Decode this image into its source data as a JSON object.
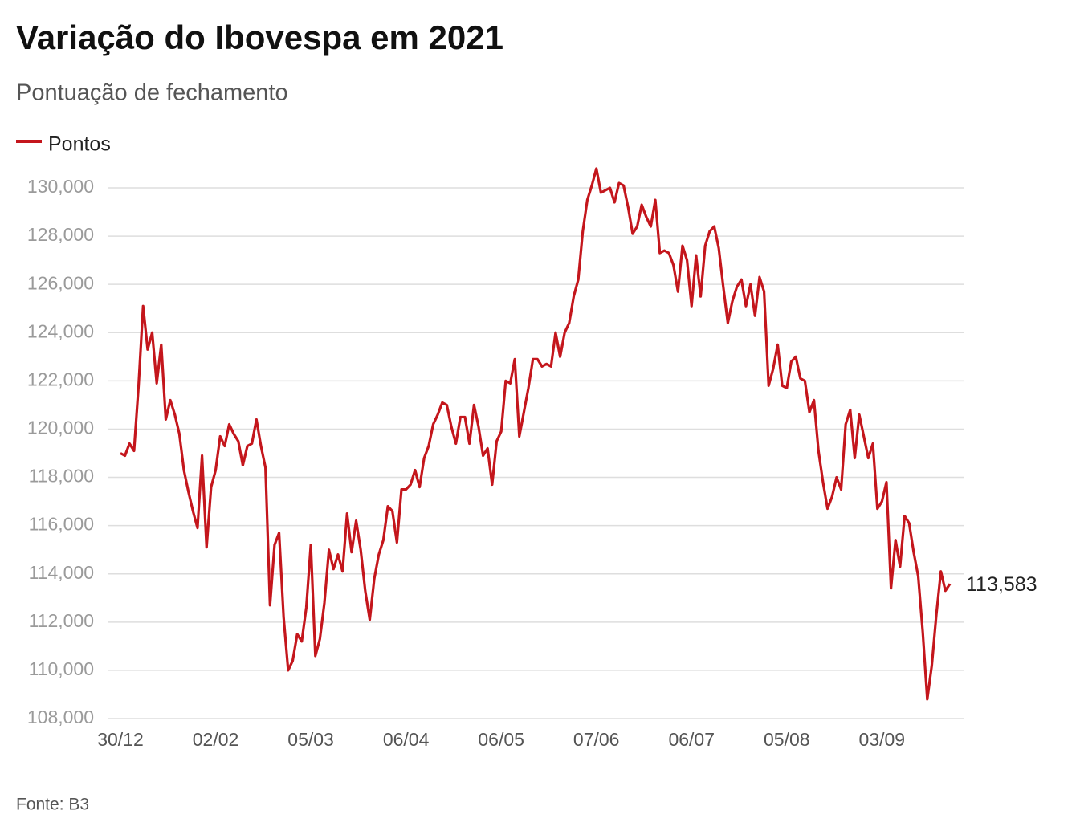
{
  "chart_data": {
    "type": "line",
    "title": "Variação do Ibovespa em 2021",
    "subtitle": "Pontuação de fechamento",
    "source": "Fonte: B3",
    "grid": true,
    "ylim": [
      108000,
      130000
    ],
    "yticks": [
      {
        "value": 108000,
        "label": "108,000"
      },
      {
        "value": 110000,
        "label": "110,000"
      },
      {
        "value": 112000,
        "label": "112,000"
      },
      {
        "value": 114000,
        "label": "114,000"
      },
      {
        "value": 116000,
        "label": "116,000"
      },
      {
        "value": 118000,
        "label": "118,000"
      },
      {
        "value": 120000,
        "label": "120,000"
      },
      {
        "value": 122000,
        "label": "122,000"
      },
      {
        "value": 124000,
        "label": "124,000"
      },
      {
        "value": 126000,
        "label": "126,000"
      },
      {
        "value": 128000,
        "label": "128,000"
      },
      {
        "value": 130000,
        "label": "130,000"
      }
    ],
    "categories": [
      "30/12",
      null,
      null,
      null,
      null,
      null,
      null,
      null,
      null,
      null,
      null,
      null,
      null,
      null,
      null,
      null,
      null,
      null,
      null,
      null,
      null,
      "02/02",
      null,
      null,
      null,
      null,
      null,
      null,
      null,
      null,
      null,
      null,
      null,
      null,
      null,
      null,
      null,
      null,
      null,
      null,
      null,
      null,
      "05/03",
      null,
      null,
      null,
      null,
      null,
      null,
      null,
      null,
      null,
      null,
      null,
      null,
      null,
      null,
      null,
      null,
      null,
      null,
      null,
      null,
      "06/04",
      null,
      null,
      null,
      null,
      null,
      null,
      null,
      null,
      null,
      null,
      null,
      null,
      null,
      null,
      null,
      null,
      null,
      null,
      null,
      null,
      "06/05",
      null,
      null,
      null,
      null,
      null,
      null,
      null,
      null,
      null,
      null,
      null,
      null,
      null,
      null,
      null,
      null,
      null,
      null,
      null,
      null,
      "07/06",
      null,
      null,
      null,
      null,
      null,
      null,
      null,
      null,
      null,
      null,
      null,
      null,
      null,
      null,
      null,
      null,
      null,
      null,
      null,
      null,
      "06/07",
      null,
      null,
      null,
      null,
      null,
      null,
      null,
      null,
      null,
      null,
      null,
      null,
      null,
      null,
      null,
      null,
      null,
      null,
      null,
      null,
      "05/08",
      null,
      null,
      null,
      null,
      null,
      null,
      null,
      null,
      null,
      null,
      null,
      null,
      null,
      null,
      null,
      null,
      null,
      null,
      null,
      null,
      "03/09",
      null,
      null,
      null,
      null,
      null,
      null,
      null,
      null,
      null,
      null,
      null,
      null,
      null,
      null,
      null
    ],
    "series": [
      {
        "name": "Pontos",
        "color": "#c4161c",
        "values": [
          119000,
          118900,
          119400,
          119100,
          121800,
          125100,
          123300,
          124000,
          121900,
          123500,
          120400,
          121200,
          120600,
          119800,
          118300,
          117400,
          116600,
          115900,
          118900,
          115100,
          117600,
          118300,
          119700,
          119300,
          120200,
          119800,
          119500,
          118500,
          119300,
          119400,
          120400,
          119300,
          118400,
          112700,
          115200,
          115700,
          112200,
          110000,
          110400,
          111500,
          111200,
          112600,
          115200,
          110600,
          111300,
          112800,
          115000,
          114200,
          114800,
          114100,
          116500,
          114900,
          116200,
          115000,
          113300,
          112100,
          113800,
          114800,
          115400,
          116800,
          116600,
          115300,
          117500,
          117500,
          117700,
          118300,
          117600,
          118800,
          119300,
          120200,
          120600,
          121100,
          121000,
          120100,
          119400,
          120500,
          120500,
          119400,
          121000,
          120100,
          118900,
          119200,
          117700,
          119500,
          119900,
          122000,
          121900,
          122900,
          119700,
          120700,
          121700,
          122900,
          122900,
          122600,
          122700,
          122600,
          124000,
          123000,
          124000,
          124400,
          125500,
          126200,
          128200,
          129500,
          130100,
          130800,
          129800,
          129900,
          130000,
          129400,
          130200,
          130100,
          129200,
          128100,
          128400,
          129300,
          128800,
          128400,
          129500,
          127300,
          127400,
          127300,
          126800,
          125700,
          127600,
          127000,
          125100,
          127200,
          125500,
          127600,
          128200,
          128400,
          127500,
          125900,
          124400,
          125300,
          125900,
          126200,
          125100,
          126000,
          124700,
          126300,
          125700,
          121800,
          122500,
          123500,
          121800,
          121700,
          122800,
          123000,
          122100,
          122000,
          120700,
          121200,
          119100,
          117800,
          116700,
          117200,
          118000,
          117500,
          120200,
          120800,
          118800,
          120600,
          119700,
          118800,
          119400,
          116700,
          117000,
          117800,
          113400,
          115400,
          114300,
          116400,
          116100,
          114900,
          113900,
          111600,
          108800,
          110200,
          112300,
          114100,
          113300,
          113583
        ],
        "value_labels": [
          null,
          null,
          null,
          null,
          null,
          null,
          null,
          null,
          null,
          null,
          null,
          null,
          null,
          null,
          null,
          null,
          null,
          null,
          null,
          null,
          null,
          null,
          null,
          null,
          null,
          null,
          null,
          null,
          null,
          null,
          null,
          null,
          null,
          null,
          null,
          null,
          null,
          null,
          null,
          null,
          null,
          null,
          null,
          null,
          null,
          null,
          null,
          null,
          null,
          null,
          null,
          null,
          null,
          null,
          null,
          null,
          null,
          null,
          null,
          null,
          null,
          null,
          null,
          null,
          null,
          null,
          null,
          null,
          null,
          null,
          null,
          null,
          null,
          null,
          null,
          null,
          null,
          null,
          null,
          null,
          null,
          null,
          null,
          null,
          null,
          null,
          null,
          null,
          null,
          null,
          null,
          null,
          null,
          null,
          null,
          null,
          null,
          null,
          null,
          null,
          null,
          null,
          null,
          null,
          null,
          null,
          null,
          null,
          null,
          null,
          null,
          null,
          null,
          null,
          null,
          null,
          null,
          null,
          null,
          null,
          null,
          null,
          null,
          null,
          null,
          null,
          null,
          null,
          null,
          null,
          null,
          null,
          null,
          null,
          null,
          null,
          null,
          null,
          null,
          null,
          null,
          null,
          null,
          null,
          null,
          null,
          null,
          null,
          null,
          null,
          null,
          null,
          null,
          null,
          null,
          null,
          null,
          null,
          null,
          null,
          null,
          null,
          null,
          null,
          null,
          null,
          null,
          null,
          null,
          null,
          null,
          null,
          null,
          null,
          null,
          null,
          null,
          null,
          null,
          null,
          null,
          null,
          null,
          "113,583"
        ]
      }
    ]
  }
}
